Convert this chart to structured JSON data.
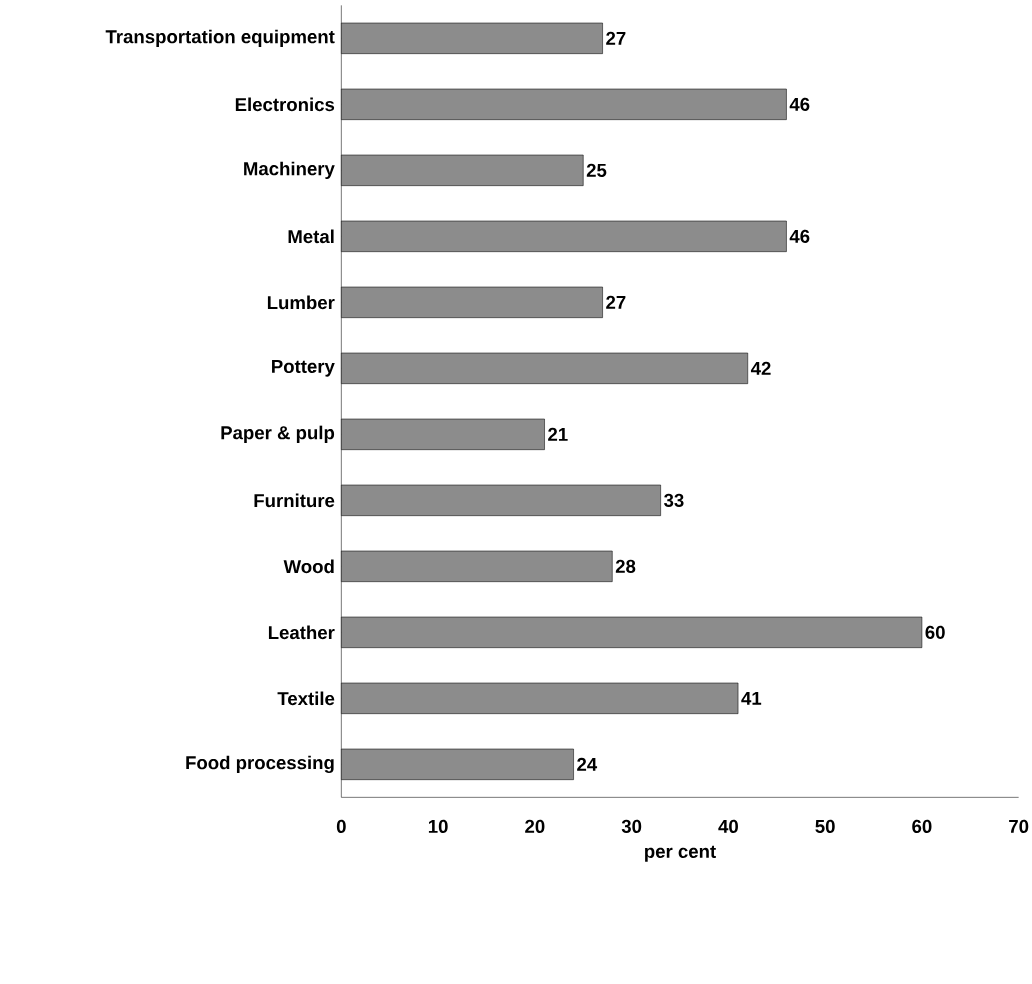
{
  "chart_data": {
    "type": "bar",
    "orientation": "horizontal",
    "xlabel": "per cent",
    "categories": [
      "Transportation equipment",
      "Electronics",
      "Machinery",
      "Metal",
      "Lumber",
      "Pottery",
      "Paper & pulp",
      "Furniture",
      "Wood",
      "Leather",
      "Textile",
      "Food processing"
    ],
    "values": [
      27,
      46,
      25,
      46,
      27,
      42,
      21,
      33,
      28,
      60,
      41,
      24
    ],
    "color": "#8c8c8c",
    "data_labels": true,
    "grid": false,
    "xlim": [
      0,
      70
    ],
    "xticks": [
      0,
      10,
      20,
      30,
      40,
      50,
      60,
      70
    ]
  }
}
